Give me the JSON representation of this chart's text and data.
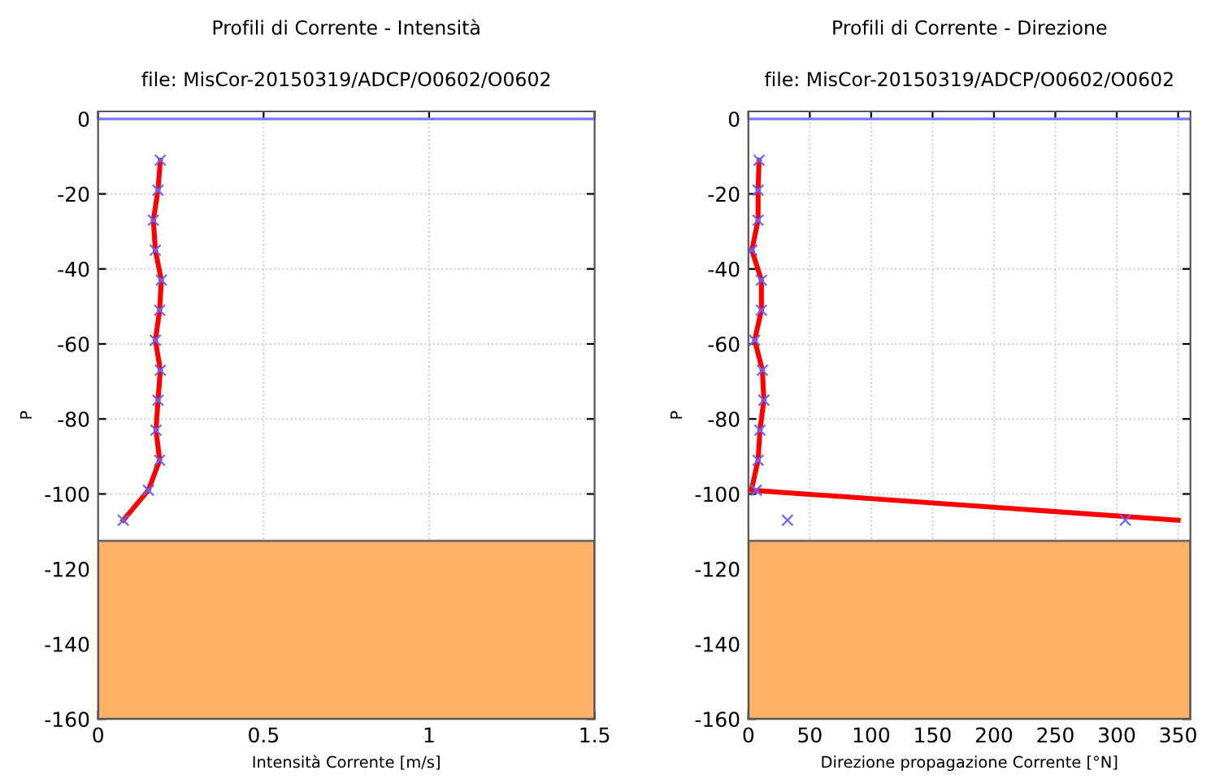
{
  "chart_data": [
    {
      "type": "line",
      "title": "Profili di Corrente - Intensità",
      "subtitle": "file: MisCor-20150319/ADCP/O0602/O0602",
      "xlabel": "Intensità Corrente [m/s]",
      "ylabel": "P",
      "xlim": [
        0,
        1.5
      ],
      "xticks": [
        0,
        0.5,
        1,
        1.5
      ],
      "ylim": [
        -160,
        2
      ],
      "yticks": [
        -160,
        -140,
        -120,
        -100,
        -80,
        -60,
        -40,
        -20,
        0
      ],
      "grid": true,
      "line_style": "solid",
      "series": [
        {
          "color": "#ff0000",
          "marker": "none",
          "x": [
            0.188,
            0.181,
            0.167,
            0.173,
            0.191,
            0.186,
            0.173,
            0.188,
            0.181,
            0.175,
            0.186,
            0.152,
            0.076
          ],
          "values": [
            -11,
            -19,
            -27,
            -35,
            -43,
            -51,
            -59,
            -67,
            -75,
            -83,
            -91,
            -99,
            -107
          ]
        },
        {
          "type": "scatter",
          "color": "#6666ff",
          "marker": "cross",
          "x": [
            0.188,
            0.181,
            0.167,
            0.173,
            0.191,
            0.186,
            0.173,
            0.188,
            0.181,
            0.175,
            0.186,
            0.152,
            0.076
          ],
          "values": [
            -11,
            -19,
            -27,
            -35,
            -43,
            -51,
            -59,
            -67,
            -75,
            -83,
            -91,
            -99,
            -107
          ]
        }
      ],
      "ref_lines": [
        {
          "axis": "y",
          "value": 0,
          "color": "#8080ff"
        }
      ],
      "bands": [
        {
          "axis": "y",
          "from": -160,
          "to": -112.5,
          "color": "#ffb266"
        }
      ]
    },
    {
      "type": "line",
      "title": "Profili di Corrente - Direzione",
      "subtitle": "file: MisCor-20150319/ADCP/O0602/O0602",
      "xlabel": "Direzione propagazione Corrente [°N]",
      "ylabel": "P",
      "xlim": [
        0,
        360
      ],
      "xticks": [
        0,
        50,
        100,
        150,
        200,
        250,
        300,
        350
      ],
      "ylim": [
        -160,
        2
      ],
      "yticks": [
        -160,
        -140,
        -120,
        -100,
        -80,
        -60,
        -40,
        -20,
        0
      ],
      "grid": true,
      "line_style": "solid",
      "series": [
        {
          "color": "#ff0000",
          "marker": "none",
          "x": [
            8.7,
            7.9,
            7.9,
            2.8,
            10.6,
            10.6,
            5.1,
            11.4,
            12.6,
            9.4,
            7.9,
            2.4,
            350
          ],
          "values": [
            -11,
            -19,
            -27,
            -35,
            -43,
            -51,
            -59,
            -67,
            -75,
            -83,
            -91,
            -99,
            -107
          ]
        },
        {
          "type": "scatter",
          "color": "#6666ff",
          "marker": "cross",
          "x": [
            8.7,
            7.9,
            7.9,
            2.8,
            10.6,
            10.6,
            5.1,
            11.4,
            12.6,
            9.4,
            7.9,
            6.4,
            31.8,
            307
          ],
          "values": [
            -11,
            -19,
            -27,
            -35,
            -43,
            -51,
            -59,
            -67,
            -75,
            -83,
            -91,
            -99,
            -107,
            -107
          ]
        }
      ],
      "ref_lines": [
        {
          "axis": "y",
          "value": 0,
          "color": "#8080ff"
        }
      ],
      "bands": [
        {
          "axis": "y",
          "from": -160,
          "to": -112.5,
          "color": "#ffb266"
        }
      ]
    }
  ]
}
